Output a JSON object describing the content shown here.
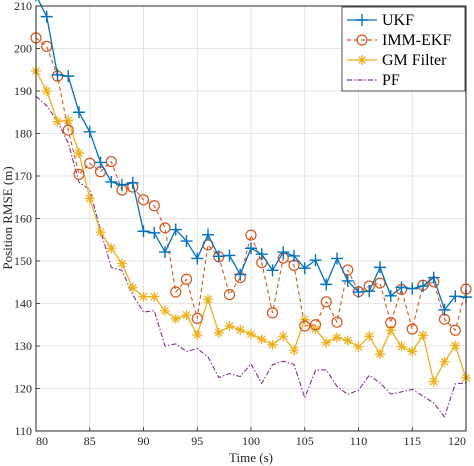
{
  "chart_data": {
    "type": "line",
    "title": "",
    "xlabel": "Time (s)",
    "ylabel": "Position RMSE (m)",
    "xlim": [
      80,
      120
    ],
    "ylim": [
      110,
      210
    ],
    "xticks": [
      80,
      85,
      90,
      95,
      100,
      105,
      110,
      115,
      120
    ],
    "yticks": [
      110,
      120,
      130,
      140,
      150,
      160,
      170,
      180,
      190,
      200,
      210
    ],
    "xtick_labels": [
      "80",
      "85",
      "90",
      "95",
      "100",
      "105",
      "110",
      "115",
      "120"
    ],
    "ytick_labels": [
      "110",
      "120",
      "130",
      "140",
      "150",
      "160",
      "170",
      "180",
      "190",
      "200",
      "210"
    ],
    "grid": true,
    "legend_position": "top-right",
    "x": [
      80,
      81,
      82,
      83,
      84,
      85,
      86,
      87,
      88,
      89,
      90,
      91,
      92,
      93,
      94,
      95,
      96,
      97,
      98,
      99,
      100,
      101,
      102,
      103,
      104,
      105,
      106,
      107,
      108,
      109,
      110,
      111,
      112,
      113,
      114,
      115,
      116,
      117,
      118,
      119,
      120
    ],
    "series": [
      {
        "name": "UKF",
        "color": "#0072BD",
        "marker": "plus",
        "line": "solid",
        "values": [
          212.5,
          207.5,
          193.8,
          193.5,
          185.0,
          180.4,
          173.2,
          168.6,
          167.9,
          168.4,
          157.0,
          156.6,
          152.1,
          157.4,
          154.7,
          150.6,
          156.2,
          151.1,
          151.3,
          146.8,
          153.0,
          151.6,
          147.8,
          152.1,
          151.2,
          148.3,
          150.2,
          144.5,
          150.6,
          145.3,
          142.7,
          142.9,
          148.5,
          141.8,
          143.8,
          143.5,
          144.1,
          146.1,
          138.5,
          141.7,
          141.5
        ]
      },
      {
        "name": "IMM-EKF",
        "color": "#D95319",
        "marker": "circle",
        "line": "dashed",
        "values": [
          202.5,
          200.5,
          193.5,
          180.8,
          170.4,
          173.0,
          171.0,
          173.4,
          166.7,
          167.4,
          164.4,
          163.0,
          157.8,
          142.7,
          145.7,
          136.5,
          153.8,
          151.0,
          142.1,
          146.1,
          156.1,
          149.6,
          137.8,
          150.7,
          149.0,
          134.7,
          135.0,
          140.4,
          135.6,
          147.9,
          142.8,
          144.1,
          144.8,
          135.5,
          143.3,
          134.0,
          144.3,
          145.1,
          136.3,
          133.7,
          143.4
        ]
      },
      {
        "name": "GM Filter",
        "color": "#EDB120",
        "marker": "star",
        "line": "solid",
        "values": [
          194.7,
          190.0,
          182.8,
          183.1,
          175.4,
          164.7,
          156.8,
          153.0,
          149.4,
          143.7,
          141.6,
          141.6,
          138.3,
          136.4,
          137.3,
          132.6,
          141.0,
          133.1,
          134.7,
          133.8,
          132.8,
          131.6,
          130.3,
          132.3,
          129.0,
          136.2,
          134.0,
          130.8,
          132.0,
          131.3,
          129.8,
          132.3,
          128.1,
          133.7,
          129.9,
          128.7,
          132.5,
          121.6,
          126.3,
          130.1,
          122.5
        ]
      },
      {
        "name": "PF",
        "color": "#7E2F8E",
        "marker": "none",
        "line": "dashdot",
        "values": [
          188.8,
          186.5,
          182.8,
          177.8,
          168.5,
          166.8,
          157.2,
          148.5,
          147.8,
          142.0,
          138.0,
          138.3,
          130.0,
          130.5,
          128.7,
          129.4,
          127.4,
          122.6,
          123.5,
          122.8,
          125.8,
          121.2,
          125.6,
          126.4,
          125.7,
          117.8,
          124.3,
          124.4,
          120.5,
          118.6,
          119.6,
          123.1,
          121.3,
          118.7,
          119.2,
          119.8,
          118.2,
          116.6,
          113.3,
          121.1,
          121.3
        ]
      }
    ]
  }
}
